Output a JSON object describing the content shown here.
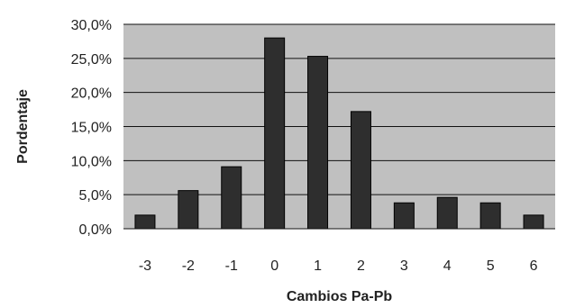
{
  "chart_data": {
    "type": "bar",
    "xlabel": "Cambios Pa-Pb",
    "ylabel": "Pordentaje",
    "categories": [
      "-3",
      "-2",
      "-1",
      "0",
      "1",
      "2",
      "3",
      "4",
      "5",
      "6"
    ],
    "values": [
      2.0,
      5.6,
      9.1,
      28.0,
      25.3,
      17.2,
      3.8,
      4.6,
      3.8,
      2.0
    ],
    "ylim": [
      0,
      30
    ],
    "yticks": [
      0,
      5,
      10,
      15,
      20,
      25,
      30
    ],
    "ytick_labels": [
      "0,0%",
      "5,0%",
      "10,0%",
      "15,0%",
      "20,0%",
      "25,0%",
      "30,0%"
    ],
    "grid": true,
    "legend": "none",
    "colors": {
      "plot_background": "#c0c0c0",
      "bar_fill": "#2e2e2e",
      "gridline": "#111111"
    }
  }
}
